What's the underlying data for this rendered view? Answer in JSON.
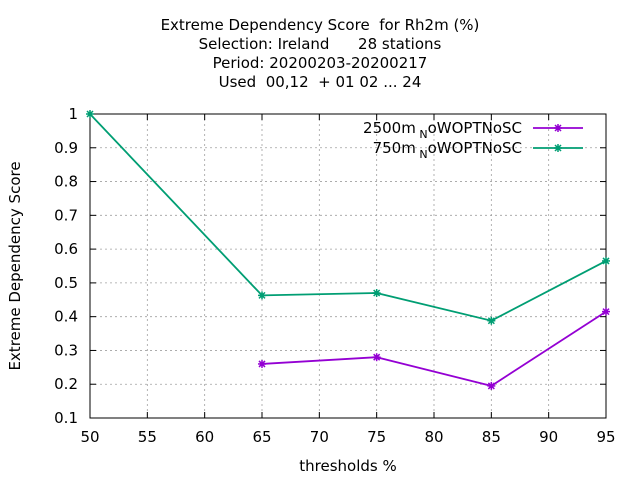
{
  "chart_data": {
    "type": "line",
    "title_lines": [
      "Extreme Dependency Score  for Rh2m (%)",
      "Selection: Ireland      28 stations",
      "Period: 20200203-20200217",
      "Used  00,12  + 01 02 ... 24"
    ],
    "xlabel": "thresholds %",
    "ylabel": "Extreme Dependency Score",
    "xlim": [
      50,
      95
    ],
    "ylim": [
      0.1,
      1.0
    ],
    "xticks": [
      50,
      55,
      60,
      65,
      70,
      75,
      80,
      85,
      90,
      95
    ],
    "yticks": [
      0.1,
      0.2,
      0.3,
      0.4,
      0.5,
      0.6,
      0.7,
      0.8,
      0.9,
      1.0
    ],
    "ytick_labels": [
      "0.1",
      "0.2",
      "0.3",
      "0.4",
      "0.5",
      "0.6",
      "0.7",
      "0.8",
      "0.9",
      "1"
    ],
    "grid": true,
    "legend_position": "top-right",
    "series": [
      {
        "name_main": "2500m",
        "name_sub": "N",
        "name_rest": "oWOPTNoSC",
        "color": "#9400d3",
        "x": [
          65,
          75,
          85,
          95
        ],
        "y": [
          0.26,
          0.28,
          0.195,
          0.415
        ]
      },
      {
        "name_main": "750m",
        "name_sub": "N",
        "name_rest": "oWOPTNoSC",
        "color": "#009e73",
        "x": [
          50,
          65,
          75,
          85,
          95
        ],
        "y": [
          1.0,
          0.463,
          0.47,
          0.388,
          0.565
        ]
      }
    ]
  }
}
